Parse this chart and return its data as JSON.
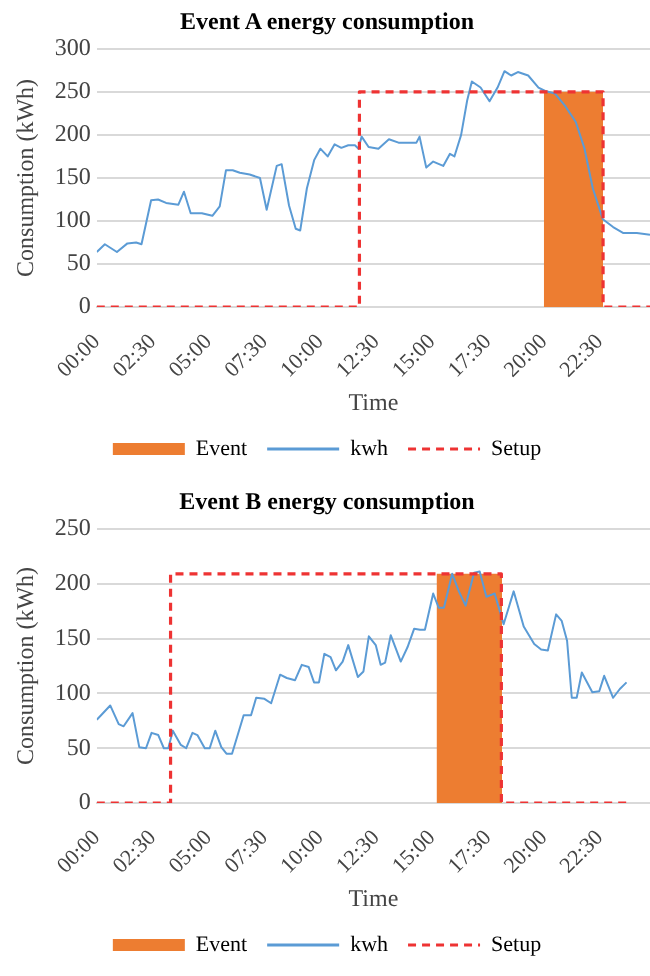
{
  "chart_data": [
    {
      "type": "line",
      "title": "Event A energy consumption",
      "xlabel": "Time",
      "ylabel": "Consumption (kWh)",
      "xlim": [
        0,
        24.75
      ],
      "ylim": [
        0,
        300
      ],
      "yticks": [
        0,
        50,
        100,
        150,
        200,
        250,
        300
      ],
      "xticks": [
        {
          "value": 0,
          "label": "00:00"
        },
        {
          "value": 2.5,
          "label": "02:30"
        },
        {
          "value": 5,
          "label": "05:00"
        },
        {
          "value": 7.5,
          "label": "07:30"
        },
        {
          "value": 10,
          "label": "10:00"
        },
        {
          "value": 12.5,
          "label": "12:30"
        },
        {
          "value": 15,
          "label": "15:00"
        },
        {
          "value": 17.5,
          "label": "17:30"
        },
        {
          "value": 20,
          "label": "20:00"
        },
        {
          "value": 22.5,
          "label": "22:30"
        }
      ],
      "grid": "y",
      "legend": "bottom",
      "marker": "none",
      "series": [
        {
          "name": "Event",
          "type": "area",
          "color": "#ed7d31",
          "x": [
            20,
            22.65
          ],
          "values": [
            250,
            250
          ]
        },
        {
          "name": "kwh",
          "type": "line",
          "color": "#5b9bd5",
          "x": [
            0,
            0.36,
            0.9,
            1.37,
            1.76,
            2.0,
            2.43,
            2.74,
            3.1,
            3.65,
            3.9,
            4.2,
            4.7,
            5.17,
            5.5,
            5.78,
            6.08,
            6.4,
            6.84,
            7.3,
            7.6,
            8.05,
            8.27,
            8.6,
            8.9,
            9.1,
            9.4,
            9.73,
            10.0,
            10.33,
            10.64,
            10.94,
            11.25,
            11.55,
            11.7,
            11.85,
            12.16,
            12.6,
            13.07,
            13.5,
            14.0,
            14.3,
            14.44,
            14.74,
            15.05,
            15.5,
            15.8,
            16.0,
            16.3,
            16.57,
            16.78,
            17.17,
            17.57,
            17.93,
            18.24,
            18.54,
            18.84,
            19.3,
            19.76,
            20.06,
            20.5,
            20.97,
            21.43,
            21.82,
            22.19,
            22.64,
            23.1,
            23.56,
            24.16,
            24.75
          ],
          "values": [
            64,
            73,
            64,
            74,
            75,
            73,
            124,
            125,
            121,
            119,
            134,
            109,
            109,
            106,
            117,
            159,
            159,
            156,
            154,
            150,
            113,
            164,
            166,
            118,
            91,
            89,
            138,
            171,
            184,
            175,
            189,
            185,
            188,
            188,
            184,
            198,
            186,
            184,
            195,
            191,
            191,
            191,
            198,
            162,
            169,
            164,
            178,
            175,
            200,
            240,
            262,
            255,
            239,
            255,
            274,
            269,
            273,
            269,
            255,
            251,
            248,
            233,
            215,
            184,
            138,
            102,
            93,
            86,
            86,
            84
          ]
        },
        {
          "name": "Setup",
          "type": "line",
          "line_style": "dashed",
          "color": "#ee3333",
          "x": [
            0,
            11.75,
            11.75,
            22.65,
            22.65,
            24.75
          ],
          "values": [
            0,
            0,
            250,
            250,
            0,
            0
          ]
        }
      ]
    },
    {
      "type": "line",
      "title": "Event B energy consumption",
      "xlabel": "Time",
      "ylabel": "Consumption (kWh)",
      "xlim": [
        0,
        24.75
      ],
      "ylim": [
        0,
        250
      ],
      "yticks": [
        0,
        50,
        100,
        150,
        200,
        250
      ],
      "xticks": [
        {
          "value": 0,
          "label": "00:00"
        },
        {
          "value": 2.5,
          "label": "02:30"
        },
        {
          "value": 5,
          "label": "05:00"
        },
        {
          "value": 7.5,
          "label": "07:30"
        },
        {
          "value": 10,
          "label": "10:00"
        },
        {
          "value": 12.5,
          "label": "12:30"
        },
        {
          "value": 15,
          "label": "15:00"
        },
        {
          "value": 17.5,
          "label": "17:30"
        },
        {
          "value": 20,
          "label": "20:00"
        },
        {
          "value": 22.5,
          "label": "22:30"
        }
      ],
      "grid": "y",
      "legend": "bottom",
      "marker": "none",
      "series": [
        {
          "name": "Event",
          "type": "area",
          "color": "#ed7d31",
          "x": [
            15.2,
            18.13
          ],
          "values": [
            209,
            209
          ]
        },
        {
          "name": "kwh",
          "type": "line",
          "color": "#5b9bd5",
          "x": [
            0,
            0.6,
            0.98,
            1.2,
            1.6,
            1.9,
            2.2,
            2.45,
            2.75,
            3.0,
            3.2,
            3.4,
            3.76,
            4.0,
            4.28,
            4.5,
            4.83,
            5.05,
            5.3,
            5.57,
            5.8,
            6.05,
            6.57,
            6.9,
            7.13,
            7.5,
            7.8,
            8.2,
            8.5,
            8.87,
            9.17,
            9.48,
            9.72,
            9.94,
            10.18,
            10.46,
            10.7,
            11.0,
            11.25,
            11.68,
            11.93,
            12.17,
            12.48,
            12.7,
            12.9,
            13.15,
            13.6,
            13.9,
            14.2,
            14.46,
            14.68,
            15.05,
            15.3,
            15.53,
            15.9,
            16.2,
            16.5,
            16.88,
            17.13,
            17.43,
            17.8,
            18.2,
            18.65,
            19.1,
            19.57,
            19.88,
            20.18,
            20.55,
            20.8,
            21.04,
            21.25,
            21.47,
            21.7,
            22.17,
            22.48,
            22.7,
            23.1,
            23.4,
            23.7
          ],
          "values": [
            76,
            89,
            72,
            70,
            82,
            51,
            50,
            64,
            62,
            50,
            50,
            66,
            53,
            50,
            64,
            62,
            50,
            50,
            66,
            51,
            45,
            45,
            80,
            80,
            96,
            95,
            91,
            117,
            114,
            112,
            126,
            124,
            110,
            110,
            136,
            133,
            121,
            129,
            144,
            115,
            120,
            152,
            144,
            126,
            128,
            153,
            129,
            142,
            159,
            158,
            158,
            191,
            178,
            178,
            209,
            193,
            180,
            210,
            211,
            188,
            191,
            163,
            193,
            161,
            145,
            140,
            139,
            172,
            166,
            148,
            96,
            96,
            119,
            101,
            102,
            116,
            96,
            104,
            110
          ]
        },
        {
          "name": "Setup",
          "type": "line",
          "line_style": "dashed",
          "color": "#ee3333",
          "x": [
            0,
            3.3,
            3.3,
            18.1,
            18.1,
            23.7
          ],
          "values": [
            0,
            0,
            209,
            209,
            0,
            0
          ]
        }
      ]
    }
  ]
}
